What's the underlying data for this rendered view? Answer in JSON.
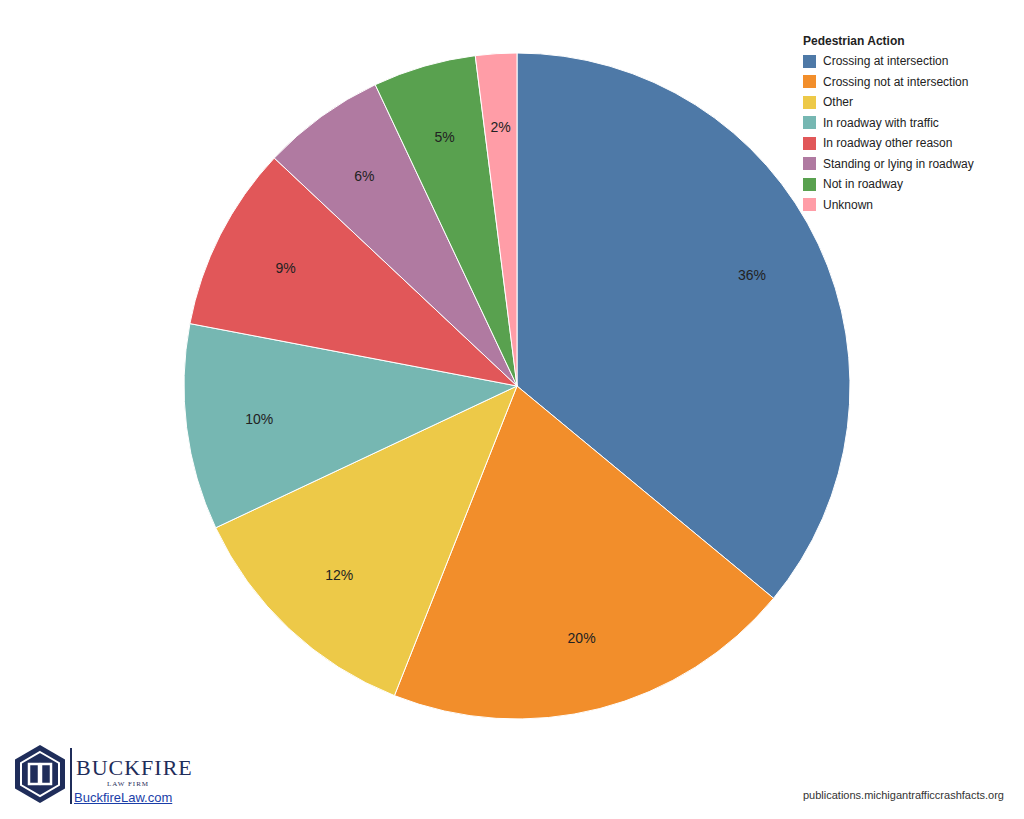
{
  "chart_data": {
    "type": "pie",
    "legend_title": "Pedestrian Action",
    "categories": [
      "Crossing at intersection",
      "Crossing not at intersection",
      "Other",
      "In roadway with traffic",
      "In roadway other reason",
      "Standing or lying in roadway",
      "Not in roadway",
      "Unknown"
    ],
    "values": [
      36,
      20,
      12,
      10,
      9,
      6,
      5,
      2
    ],
    "value_labels": [
      "36%",
      "20%",
      "12%",
      "10%",
      "9%",
      "6%",
      "5%",
      "2%"
    ],
    "colors": [
      "#4e79a7",
      "#f28e2b",
      "#edc948",
      "#76b7b2",
      "#e15759",
      "#b07aa1",
      "#59a14f",
      "#ff9da7"
    ],
    "data_labels": true,
    "legend": "upper right",
    "annotations": [
      "BUCKFIRE",
      "LAW FIRM",
      "BuckfireLaw.com",
      "publications.michigantrafficcrashfacts.org"
    ]
  }
}
